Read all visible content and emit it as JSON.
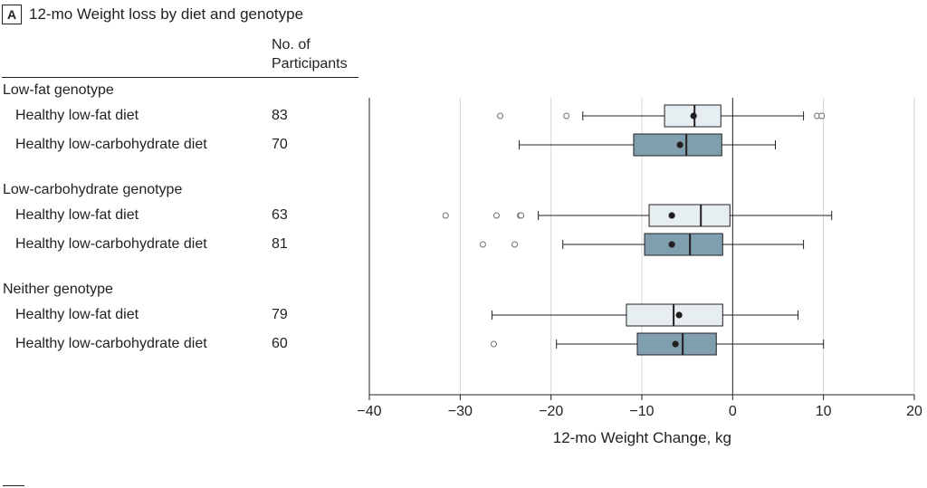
{
  "panel": {
    "letter": "A",
    "title": "12-mo Weight loss by diet and genotype"
  },
  "table_header": {
    "line1": "No. of",
    "line2": "Participants"
  },
  "groups": [
    {
      "label": "Low-fat genotype",
      "rows": [
        {
          "diet": "Healthy low-fat diet",
          "n": "83"
        },
        {
          "diet": "Healthy low-carbohydrate diet",
          "n": "70"
        }
      ]
    },
    {
      "label": "Low-carbohydrate genotype",
      "rows": [
        {
          "diet": "Healthy low-fat diet",
          "n": "63"
        },
        {
          "diet": "Healthy low-carbohydrate diet",
          "n": "81"
        }
      ]
    },
    {
      "label": "Neither genotype",
      "rows": [
        {
          "diet": "Healthy low-fat diet",
          "n": "79"
        },
        {
          "diet": "Healthy low-carbohydrate diet",
          "n": "60"
        }
      ]
    }
  ],
  "colors": {
    "low_fat_fill": "#e7eef2",
    "low_carb_fill": "#7f9fae",
    "stroke": "#231f20",
    "grid": "#d4d4d4"
  },
  "chart_data": {
    "type": "boxplot",
    "xlabel": "12-mo Weight Change, kg",
    "xlim": [
      -40,
      20
    ],
    "xticks": [
      -40,
      -30,
      -20,
      -10,
      0,
      10,
      20
    ],
    "grid": true,
    "reference_line": 0,
    "boxes": [
      {
        "group": "Low-fat genotype",
        "diet": "Healthy low-fat diet",
        "whisker_low": -16.5,
        "q1": -7.5,
        "median": -4.2,
        "q3": -1.3,
        "whisker_high": 7.8,
        "mean": -4.3,
        "outliers": [
          -25.6,
          -18.3,
          9.3,
          9.8
        ]
      },
      {
        "group": "Low-fat genotype",
        "diet": "Healthy low-carbohydrate diet",
        "whisker_low": -23.5,
        "q1": -10.9,
        "median": -5.1,
        "q3": -1.2,
        "whisker_high": 4.7,
        "mean": -5.8,
        "outliers": []
      },
      {
        "group": "Low-carbohydrate genotype",
        "diet": "Healthy low-fat diet",
        "whisker_low": -21.4,
        "q1": -9.2,
        "median": -3.5,
        "q3": -0.3,
        "whisker_high": 10.9,
        "mean": -6.7,
        "outliers": [
          -31.6,
          -26.0,
          -23.4,
          -23.3
        ]
      },
      {
        "group": "Low-carbohydrate genotype",
        "diet": "Healthy low-carbohydrate diet",
        "whisker_low": -18.7,
        "q1": -9.7,
        "median": -4.7,
        "q3": -1.1,
        "whisker_high": 7.8,
        "mean": -6.7,
        "outliers": [
          -27.5,
          -24.0
        ]
      },
      {
        "group": "Neither genotype",
        "diet": "Healthy low-fat diet",
        "whisker_low": -26.5,
        "q1": -11.7,
        "median": -6.5,
        "q3": -1.1,
        "whisker_high": 7.2,
        "mean": -5.9,
        "outliers": []
      },
      {
        "group": "Neither genotype",
        "diet": "Healthy low-carbohydrate diet",
        "whisker_low": -19.4,
        "q1": -10.5,
        "median": -5.5,
        "q3": -1.8,
        "whisker_high": 10.0,
        "mean": -6.3,
        "outliers": [
          -26.3
        ]
      }
    ]
  }
}
